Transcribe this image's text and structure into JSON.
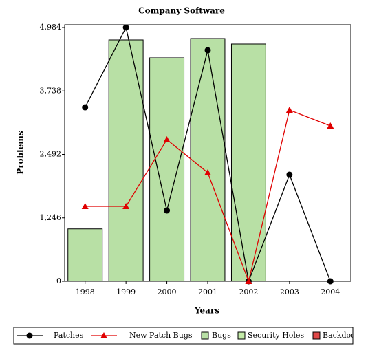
{
  "chart_data": {
    "type": "bar_line",
    "title": "Company Software",
    "x_label": "Years",
    "y_label": "Problems",
    "categories": [
      "1998",
      "1999",
      "2000",
      "2001",
      "2002",
      "2003",
      "2004"
    ],
    "ylim": [
      0,
      4984
    ],
    "yticks": [
      0,
      {
        "value": 1246,
        "label": "1,246"
      },
      {
        "value": 2492,
        "label": "2,492"
      },
      {
        "value": 3738,
        "label": "3,738"
      },
      {
        "value": 4984,
        "label": "4,984"
      }
    ],
    "series": [
      {
        "name": "Patches",
        "kind": "line",
        "marker": "circle",
        "color": "#000000",
        "values": [
          3417,
          4984,
          1391,
          4538,
          0,
          2094,
          0
        ]
      },
      {
        "name": "New Patch Bugs",
        "kind": "line",
        "marker": "triangle",
        "color": "#e00000",
        "values": [
          1472,
          1472,
          2782,
          2134,
          0,
          3363,
          3053
        ]
      },
      {
        "name": "Bugs",
        "kind": "bar",
        "color": "#b8e0a5",
        "values": [
          1030,
          4741,
          4390,
          4768,
          4660,
          null,
          null
        ]
      },
      {
        "name": "Security Holes",
        "kind": "bar",
        "color": "#c4eca8",
        "values": [
          null,
          null,
          null,
          null,
          null,
          null,
          null
        ]
      },
      {
        "name": "Backdoors",
        "kind": "bar",
        "color": "#e04848",
        "values": [
          null,
          null,
          null,
          null,
          null,
          null,
          null
        ]
      }
    ]
  }
}
